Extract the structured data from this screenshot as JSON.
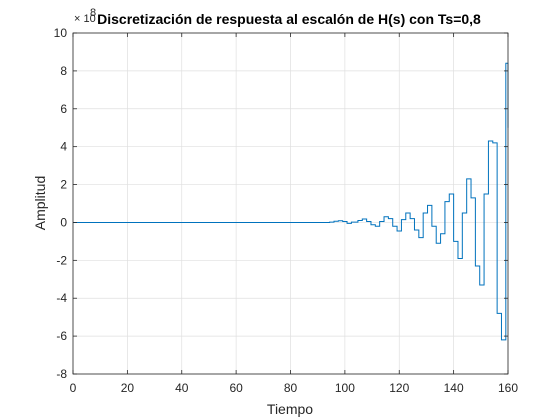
{
  "chart_data": {
    "type": "line",
    "style": "stairs",
    "title": "Discretización de respuesta al escalón de H(s) con Ts=0,8",
    "xlabel": "Tiempo",
    "ylabel": "Amplitud",
    "y_exponent_base": "× 10",
    "y_exponent_power": "8",
    "xlim": [
      0,
      160
    ],
    "ylim": [
      -8,
      10
    ],
    "xticks": [
      0,
      20,
      40,
      60,
      80,
      100,
      120,
      140,
      160
    ],
    "yticks": [
      -8,
      -6,
      -4,
      -2,
      0,
      2,
      4,
      6,
      8,
      10
    ],
    "xtick_labels": [
      "0",
      "20",
      "40",
      "60",
      "80",
      "100",
      "120",
      "140",
      "160"
    ],
    "ytick_labels": [
      "-8",
      "-6",
      "-4",
      "-2",
      "0",
      "2",
      "4",
      "6",
      "8",
      "10"
    ],
    "grid": true,
    "line_color": "#0072BD",
    "series": [
      {
        "x": [
          0,
          94.4,
          96.0,
          97.6,
          99.2,
          100.8,
          102.4,
          104.8,
          106.4,
          108.0,
          109.6,
          111.2,
          112.8,
          114.4,
          116.0,
          117.6,
          119.2,
          120.8,
          122.4,
          124.0,
          125.6,
          127.2,
          128.8,
          130.4,
          132.0,
          133.6,
          135.2,
          136.8,
          138.4,
          140.0,
          141.6,
          143.2,
          144.8,
          146.4,
          148.0,
          149.6,
          151.2,
          152.8,
          154.4,
          156.0,
          157.6,
          159.2,
          160.0
        ],
        "y": [
          0,
          0.02,
          0.06,
          0.09,
          0.05,
          -0.05,
          0.02,
          0.1,
          0.18,
          0.05,
          -0.12,
          -0.2,
          0.05,
          0.3,
          0.2,
          -0.2,
          -0.45,
          0.15,
          0.5,
          0.2,
          -0.4,
          -0.8,
          0.5,
          0.9,
          -0.2,
          -1.1,
          -0.6,
          1.1,
          1.5,
          -1.0,
          -1.9,
          0.5,
          2.3,
          1.3,
          -2.3,
          -3.3,
          1.5,
          4.3,
          4.2,
          -4.8,
          -6.2,
          8.4,
          5.0
        ]
      }
    ]
  }
}
